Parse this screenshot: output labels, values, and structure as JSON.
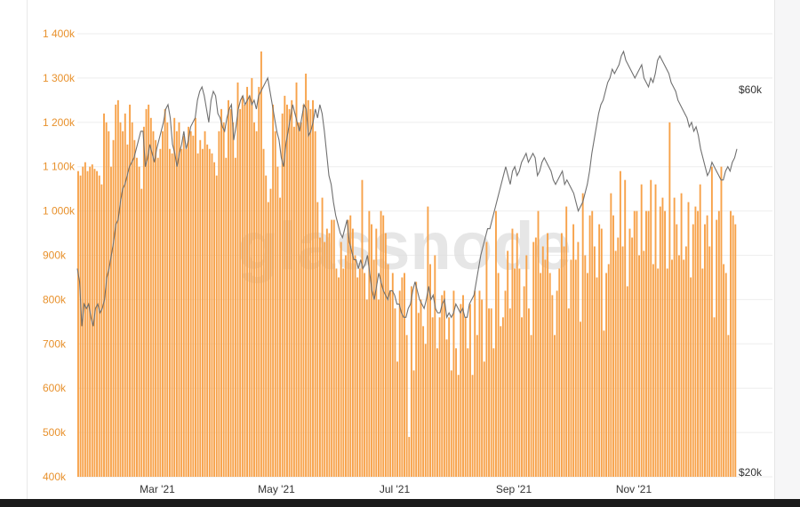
{
  "watermark": "glassnode",
  "colors": {
    "bars": "#f7a24a",
    "price_line": "#707070",
    "left_axis_text": "#e8912c",
    "right_axis_text": "#333333",
    "grid": "#eeeeee",
    "watermark": "#dddddd"
  },
  "chart_data": {
    "type": "bar",
    "x_tick_labels": [
      "Mar '21",
      "May '21",
      "Jul '21",
      "Sep '21",
      "Nov '21"
    ],
    "y_left": {
      "ticks": [
        400000,
        500000,
        600000,
        700000,
        800000,
        900000,
        1000000,
        1100000,
        1200000,
        1300000,
        1400000
      ],
      "tick_labels": [
        "400k",
        "500k",
        "600k",
        "700k",
        "800k",
        "900k",
        "1 000k",
        "1 100k",
        "1 200k",
        "1 300k",
        "1 400k"
      ],
      "ylim": [
        400000,
        1400000
      ]
    },
    "y_right": {
      "tick_labels": [
        "$20k",
        "$60k"
      ],
      "scale": "log"
    },
    "grid": true,
    "series": [
      {
        "kind": "bar",
        "unit": "thousands",
        "values": [
          1090,
          1080,
          1100,
          1110,
          1090,
          1100,
          1105,
          1095,
          1090,
          1080,
          1060,
          1220,
          1200,
          1180,
          1100,
          1160,
          1240,
          1250,
          1200,
          1180,
          1220,
          1150,
          1240,
          1200,
          1160,
          1120,
          1100,
          1050,
          1190,
          1230,
          1240,
          1210,
          1180,
          1160,
          1120,
          1140,
          1180,
          1230,
          1200,
          1140,
          1130,
          1210,
          1180,
          1200,
          1140,
          1170,
          1140,
          1190,
          1180,
          1170,
          1210,
          1130,
          1160,
          1140,
          1180,
          1150,
          1140,
          1130,
          1110,
          1080,
          1180,
          1230,
          1200,
          1120,
          1250,
          1230,
          1200,
          1120,
          1290,
          1230,
          1260,
          1240,
          1280,
          1260,
          1300,
          1200,
          1180,
          1280,
          1360,
          1140,
          1080,
          1020,
          1050,
          1240,
          1180,
          1100,
          1030,
          1220,
          1260,
          1240,
          1230,
          1250,
          1190,
          1290,
          1200,
          1200,
          1240,
          1310,
          1250,
          1230,
          1250,
          1180,
          1020,
          940,
          1030,
          930,
          960,
          950,
          980,
          980,
          870,
          850,
          930,
          870,
          900,
          980,
          990,
          960,
          900,
          850,
          870,
          1070,
          860,
          800,
          1000,
          970,
          890,
          960,
          800,
          1000,
          990,
          950,
          880,
          820,
          860,
          780,
          660,
          820,
          850,
          860,
          720,
          490,
          830,
          640,
          840,
          770,
          800,
          740,
          700,
          1010,
          880,
          760,
          900,
          690,
          760,
          810,
          820,
          710,
          760,
          640,
          820,
          690,
          630,
          790,
          810,
          760,
          690,
          790,
          630,
          820,
          720,
          820,
          800,
          660,
          930,
          780,
          780,
          690,
          1000,
          860,
          740,
          760,
          820,
          910,
          780,
          960,
          870,
          950,
          870,
          760,
          830,
          900,
          780,
          720,
          930,
          940,
          1000,
          860,
          920,
          890,
          950,
          860,
          810,
          720,
          820,
          870,
          950,
          920,
          1010,
          780,
          890,
          970,
          890,
          930,
          750,
          1040,
          900,
          860,
          990,
          1000,
          920,
          850,
          970,
          960,
          730,
          860,
          880,
          1040,
          990,
          910,
          940,
          1090,
          920,
          1070,
          830,
          960,
          940,
          1000,
          1000,
          900,
          1060,
          910,
          1000,
          1000,
          1070,
          880,
          1060,
          870,
          1010,
          1030,
          1000,
          870,
          1200,
          890,
          1030,
          970,
          900,
          1040,
          890,
          920,
          1020,
          850,
          970,
          1010,
          1000,
          1060,
          870,
          970,
          990,
          920,
          1100,
          760,
          980,
          1000,
          1100,
          880,
          860,
          720,
          1000,
          990,
          970
        ],
        "bar_color": "#f7a24a"
      },
      {
        "kind": "line",
        "axis": "right",
        "values": [
          870,
          840,
          740,
          790,
          780,
          790,
          760,
          740,
          780,
          790,
          770,
          780,
          800,
          850,
          870,
          900,
          930,
          970,
          980,
          1020,
          1050,
          1060,
          1080,
          1100,
          1110,
          1120,
          1140,
          1160,
          1180,
          1180,
          1100,
          1120,
          1150,
          1130,
          1110,
          1140,
          1160,
          1180,
          1200,
          1230,
          1240,
          1210,
          1150,
          1130,
          1100,
          1130,
          1150,
          1180,
          1140,
          1160,
          1190,
          1200,
          1210,
          1250,
          1270,
          1280,
          1260,
          1230,
          1200,
          1250,
          1270,
          1260,
          1220,
          1210,
          1190,
          1180,
          1210,
          1230,
          1240,
          1160,
          1190,
          1230,
          1250,
          1260,
          1240,
          1250,
          1260,
          1240,
          1250,
          1230,
          1260,
          1270,
          1280,
          1290,
          1300,
          1270,
          1240,
          1210,
          1180,
          1160,
          1120,
          1100,
          1150,
          1180,
          1210,
          1240,
          1220,
          1200,
          1180,
          1210,
          1240,
          1230,
          1170,
          1180,
          1200,
          1230,
          1210,
          1240,
          1220,
          1180,
          1130,
          1080,
          1060,
          1020,
          990,
          970,
          950,
          940,
          960,
          980,
          930,
          910,
          890,
          890,
          870,
          890,
          870,
          880,
          900,
          860,
          820,
          800,
          830,
          860,
          840,
          820,
          810,
          800,
          820,
          820,
          810,
          790,
          790,
          770,
          760,
          760,
          780,
          790,
          820,
          840,
          820,
          800,
          790,
          780,
          800,
          830,
          800,
          810,
          780,
          770,
          770,
          790,
          800,
          760,
          770,
          760,
          770,
          790,
          780,
          770,
          780,
          760,
          760,
          790,
          800,
          810,
          840,
          870,
          900,
          920,
          940,
          960,
          960,
          980,
          1000,
          1020,
          1040,
          1060,
          1080,
          1100,
          1080,
          1060,
          1090,
          1100,
          1080,
          1090,
          1110,
          1120,
          1130,
          1110,
          1120,
          1130,
          1120,
          1080,
          1090,
          1110,
          1120,
          1110,
          1100,
          1090,
          1070,
          1060,
          1070,
          1080,
          1090,
          1060,
          1070,
          1060,
          1050,
          1040,
          1020,
          1000,
          1010,
          1020,
          1040,
          1060,
          1090,
          1130,
          1160,
          1190,
          1220,
          1240,
          1250,
          1270,
          1290,
          1300,
          1320,
          1310,
          1320,
          1330,
          1350,
          1360,
          1340,
          1330,
          1320,
          1310,
          1300,
          1310,
          1320,
          1330,
          1300,
          1290,
          1280,
          1300,
          1290,
          1310,
          1340,
          1350,
          1340,
          1330,
          1320,
          1310,
          1290,
          1280,
          1270,
          1250,
          1240,
          1230,
          1220,
          1210,
          1190,
          1200,
          1180,
          1190,
          1170,
          1140,
          1120,
          1100,
          1080,
          1090,
          1110,
          1100,
          1090,
          1080,
          1070,
          1070,
          1090,
          1100,
          1090,
          1110,
          1120,
          1140
        ],
        "line_color": "#707070"
      }
    ]
  }
}
